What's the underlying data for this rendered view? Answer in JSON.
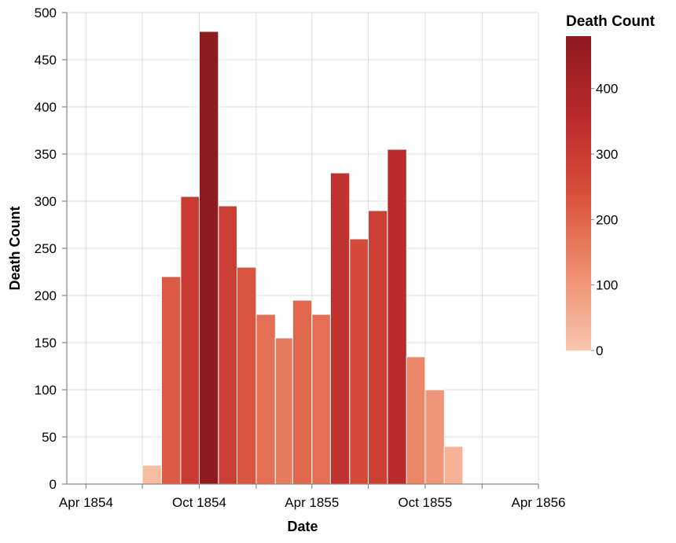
{
  "chart_data": {
    "type": "bar",
    "title": "",
    "xlabel": "Date",
    "ylabel": "Death Count",
    "ylim": [
      0,
      500
    ],
    "y_ticks": [
      0,
      50,
      100,
      150,
      200,
      250,
      300,
      350,
      400,
      450,
      500
    ],
    "x_range": [
      "1854-03-01",
      "1856-04-01"
    ],
    "x_ticks": [
      {
        "date": "1854-04-01",
        "label": "Apr 1854"
      },
      {
        "date": "1854-07-01",
        "label": ""
      },
      {
        "date": "1854-10-01",
        "label": "Oct 1854"
      },
      {
        "date": "1855-01-01",
        "label": ""
      },
      {
        "date": "1855-04-01",
        "label": "Apr 1855"
      },
      {
        "date": "1855-07-01",
        "label": ""
      },
      {
        "date": "1855-10-01",
        "label": "Oct 1855"
      },
      {
        "date": "1856-01-01",
        "label": ""
      },
      {
        "date": "1856-04-01",
        "label": "Apr 1856"
      }
    ],
    "grid": true,
    "bars": [
      {
        "start": "1854-07-01",
        "value": 20
      },
      {
        "start": "1854-08-01",
        "value": 220
      },
      {
        "start": "1854-09-01",
        "value": 305
      },
      {
        "start": "1854-10-01",
        "value": 480
      },
      {
        "start": "1854-11-01",
        "value": 295
      },
      {
        "start": "1854-12-01",
        "value": 230
      },
      {
        "start": "1855-01-01",
        "value": 180
      },
      {
        "start": "1855-02-01",
        "value": 155
      },
      {
        "start": "1855-03-01",
        "value": 195
      },
      {
        "start": "1855-04-01",
        "value": 180
      },
      {
        "start": "1855-05-01",
        "value": 330
      },
      {
        "start": "1855-06-01",
        "value": 260
      },
      {
        "start": "1855-07-01",
        "value": 290
      },
      {
        "start": "1855-08-01",
        "value": 355
      },
      {
        "start": "1855-09-01",
        "value": 135
      },
      {
        "start": "1855-10-01",
        "value": 100
      },
      {
        "start": "1855-11-01",
        "value": 40
      }
    ],
    "legend": {
      "title": "Death Count",
      "placement": "right",
      "ticks": [
        0,
        100,
        200,
        300,
        400
      ],
      "domain": [
        0,
        480
      ],
      "colors": [
        "#f7c6ae",
        "#ee8e6e",
        "#d94f3b",
        "#b9292b",
        "#8e1b1e"
      ]
    }
  }
}
